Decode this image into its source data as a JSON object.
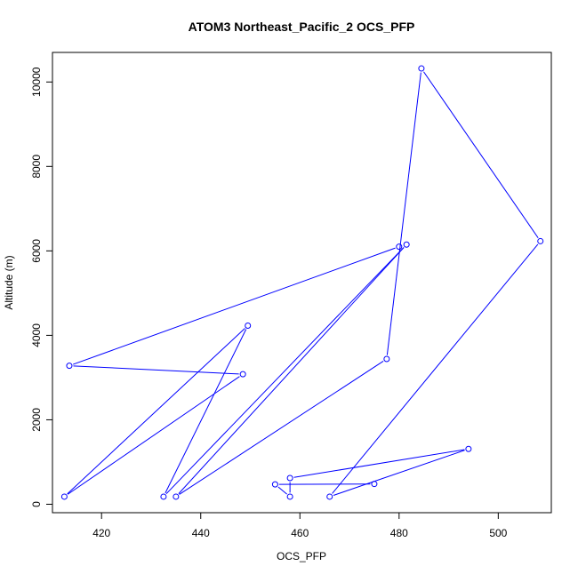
{
  "chart_data": {
    "type": "line",
    "title": "ATOM3 Northeast_Pacific_2 OCS_PFP",
    "xlabel": "OCS_PFP",
    "ylabel": "Altitude (m)",
    "xlim": [
      410.1,
      510.7
    ],
    "ylim": [
      -200,
      10700
    ],
    "xticks": [
      420,
      440,
      460,
      480,
      500
    ],
    "yticks": [
      0,
      2000,
      4000,
      6000,
      8000,
      10000
    ],
    "grid": false,
    "color": "#0000ff",
    "series": [
      {
        "x": [
          475.0,
          455.0,
          458.0,
          458.0,
          494.0,
          466.0,
          508.5,
          484.5,
          477.5,
          435.0,
          481.5,
          432.5,
          449.5,
          412.5,
          448.5,
          413.5,
          480.0
        ],
        "y": [
          480,
          470,
          180,
          620,
          1310,
          180,
          6230,
          10320,
          3440,
          180,
          6150,
          180,
          4230,
          180,
          3080,
          3280,
          6100
        ]
      }
    ]
  }
}
